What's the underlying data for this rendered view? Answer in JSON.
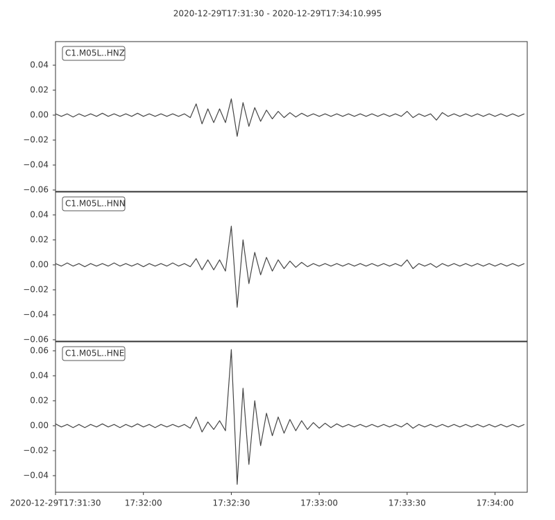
{
  "title": "2020-12-29T17:31:30  -  2020-12-29T17:34:10.995",
  "chart_data": [
    {
      "type": "line",
      "xlim": [
        0,
        160.995
      ],
      "ylim": [
        -0.0611,
        0.0589
      ],
      "yticks": [
        {
          "value": -0.06,
          "label": "−0.06"
        },
        {
          "value": -0.04,
          "label": "−0.04"
        },
        {
          "value": -0.02,
          "label": "−0.02"
        },
        {
          "value": 0,
          "label": "0.00"
        },
        0.02,
        0.04
      ],
      "x": [
        0,
        2,
        4,
        6,
        8,
        10,
        12,
        14,
        16,
        18,
        20,
        22,
        24,
        26,
        28,
        30,
        32,
        34,
        36,
        38,
        40,
        42,
        44,
        46,
        48,
        50,
        52,
        54,
        56,
        58,
        60,
        62,
        64,
        66,
        68,
        70,
        72,
        74,
        76,
        78,
        80,
        82,
        84,
        86,
        88,
        90,
        92,
        94,
        96,
        98,
        100,
        102,
        104,
        106,
        108,
        110,
        112,
        114,
        116,
        118,
        120,
        122,
        124,
        126,
        128,
        130,
        132,
        134,
        136,
        138,
        140,
        142,
        144,
        146,
        148,
        150,
        152,
        154,
        156,
        158,
        160
      ],
      "series": [
        {
          "name": "C1.M05L..HNZ",
          "color": "#444444",
          "values": [
            0.001,
            -0.001,
            0.001,
            -0.0015,
            0.001,
            -0.001,
            0.001,
            -0.001,
            0.0015,
            -0.001,
            0.001,
            -0.001,
            0.001,
            -0.001,
            0.0015,
            -0.001,
            0.001,
            -0.001,
            0.001,
            -0.001,
            0.001,
            -0.001,
            0.001,
            -0.002,
            0.009,
            -0.007,
            0.005,
            -0.006,
            0.005,
            -0.006,
            0.013,
            -0.017,
            0.01,
            -0.009,
            0.006,
            -0.005,
            0.004,
            -0.003,
            0.003,
            -0.002,
            0.002,
            -0.0015,
            0.0015,
            -0.001,
            0.001,
            -0.001,
            0.001,
            -0.001,
            0.001,
            -0.001,
            0.001,
            -0.001,
            0.001,
            -0.001,
            0.001,
            -0.001,
            0.001,
            -0.001,
            0.001,
            -0.001,
            0.003,
            -0.002,
            0.001,
            -0.001,
            0.001,
            -0.004,
            0.002,
            -0.001,
            0.001,
            -0.001,
            0.001,
            -0.001,
            0.001,
            -0.001,
            0.001,
            -0.001,
            0.001,
            -0.001,
            0.001,
            -0.001,
            0.001
          ]
        }
      ]
    },
    {
      "type": "line",
      "xlim": [
        0,
        160.995
      ],
      "ylim": [
        -0.0611,
        0.0583
      ],
      "yticks": [
        {
          "value": -0.06,
          "label": "−0.06"
        },
        {
          "value": -0.04,
          "label": "−0.04"
        },
        {
          "value": -0.02,
          "label": "−0.02"
        },
        {
          "value": 0,
          "label": "0.00"
        },
        0.02,
        0.04
      ],
      "x": [
        0,
        2,
        4,
        6,
        8,
        10,
        12,
        14,
        16,
        18,
        20,
        22,
        24,
        26,
        28,
        30,
        32,
        34,
        36,
        38,
        40,
        42,
        44,
        46,
        48,
        50,
        52,
        54,
        56,
        58,
        60,
        62,
        64,
        66,
        68,
        70,
        72,
        74,
        76,
        78,
        80,
        82,
        84,
        86,
        88,
        90,
        92,
        94,
        96,
        98,
        100,
        102,
        104,
        106,
        108,
        110,
        112,
        114,
        116,
        118,
        120,
        122,
        124,
        126,
        128,
        130,
        132,
        134,
        136,
        138,
        140,
        142,
        144,
        146,
        148,
        150,
        152,
        154,
        156,
        158,
        160
      ],
      "series": [
        {
          "name": "C1.M05L..HNN",
          "color": "#444444",
          "values": [
            0.001,
            -0.001,
            0.0015,
            -0.001,
            0.001,
            -0.0015,
            0.001,
            -0.001,
            0.001,
            -0.001,
            0.0015,
            -0.001,
            0.001,
            -0.001,
            0.001,
            -0.0015,
            0.001,
            -0.001,
            0.001,
            -0.001,
            0.0015,
            -0.001,
            0.001,
            -0.0015,
            0.005,
            -0.004,
            0.004,
            -0.004,
            0.004,
            -0.005,
            0.031,
            -0.034,
            0.02,
            -0.015,
            0.01,
            -0.008,
            0.006,
            -0.005,
            0.004,
            -0.003,
            0.003,
            -0.002,
            0.002,
            -0.0015,
            0.001,
            -0.001,
            0.001,
            -0.001,
            0.001,
            -0.001,
            0.001,
            -0.001,
            0.001,
            -0.001,
            0.001,
            -0.001,
            0.001,
            -0.001,
            0.001,
            -0.001,
            0.004,
            -0.003,
            0.001,
            -0.001,
            0.001,
            -0.002,
            0.001,
            -0.001,
            0.001,
            -0.001,
            0.001,
            -0.001,
            0.001,
            -0.001,
            0.001,
            -0.001,
            0.001,
            -0.001,
            0.001,
            -0.001,
            0.001
          ]
        }
      ]
    },
    {
      "type": "line",
      "xlim": [
        0,
        160.995
      ],
      "ylim": [
        -0.0533,
        0.0672
      ],
      "yticks": [
        {
          "value": -0.04,
          "label": "−0.04"
        },
        {
          "value": -0.02,
          "label": "−0.02"
        },
        {
          "value": 0,
          "label": "0.00"
        },
        0.02,
        0.04,
        0.06
      ],
      "xticks": [
        {
          "value": 0,
          "label": "2020-12-29T17:31:30"
        },
        {
          "value": 30,
          "label": "17:32:00"
        },
        {
          "value": 60,
          "label": "17:32:30"
        },
        {
          "value": 90,
          "label": "17:33:00"
        },
        {
          "value": 120,
          "label": "17:33:30"
        },
        {
          "value": 150,
          "label": "17:34:00"
        }
      ],
      "x": [
        0,
        2,
        4,
        6,
        8,
        10,
        12,
        14,
        16,
        18,
        20,
        22,
        24,
        26,
        28,
        30,
        32,
        34,
        36,
        38,
        40,
        42,
        44,
        46,
        48,
        50,
        52,
        54,
        56,
        58,
        60,
        62,
        64,
        66,
        68,
        70,
        72,
        74,
        76,
        78,
        80,
        82,
        84,
        86,
        88,
        90,
        92,
        94,
        96,
        98,
        100,
        102,
        104,
        106,
        108,
        110,
        112,
        114,
        116,
        118,
        120,
        122,
        124,
        126,
        128,
        130,
        132,
        134,
        136,
        138,
        140,
        142,
        144,
        146,
        148,
        150,
        152,
        154,
        156,
        158,
        160
      ],
      "series": [
        {
          "name": "C1.M05L..HNE",
          "color": "#444444",
          "values": [
            0.0015,
            -0.001,
            0.001,
            -0.0015,
            0.001,
            -0.0015,
            0.001,
            -0.001,
            0.0015,
            -0.001,
            0.001,
            -0.0015,
            0.001,
            -0.001,
            0.0015,
            -0.001,
            0.001,
            -0.0015,
            0.001,
            -0.001,
            0.001,
            -0.001,
            0.001,
            -0.002,
            0.007,
            -0.005,
            0.003,
            -0.003,
            0.004,
            -0.004,
            0.061,
            -0.047,
            0.03,
            -0.031,
            0.02,
            -0.016,
            0.01,
            -0.008,
            0.007,
            -0.006,
            0.005,
            -0.004,
            0.004,
            -0.003,
            0.0025,
            -0.002,
            0.002,
            -0.0015,
            0.0015,
            -0.001,
            0.001,
            -0.001,
            0.001,
            -0.001,
            0.001,
            -0.001,
            0.001,
            -0.001,
            0.001,
            -0.001,
            0.002,
            -0.002,
            0.001,
            -0.001,
            0.001,
            -0.001,
            0.001,
            -0.001,
            0.001,
            -0.001,
            0.001,
            -0.001,
            0.001,
            -0.001,
            0.001,
            -0.001,
            0.001,
            -0.001,
            0.001,
            -0.001,
            0.001
          ]
        }
      ]
    }
  ]
}
